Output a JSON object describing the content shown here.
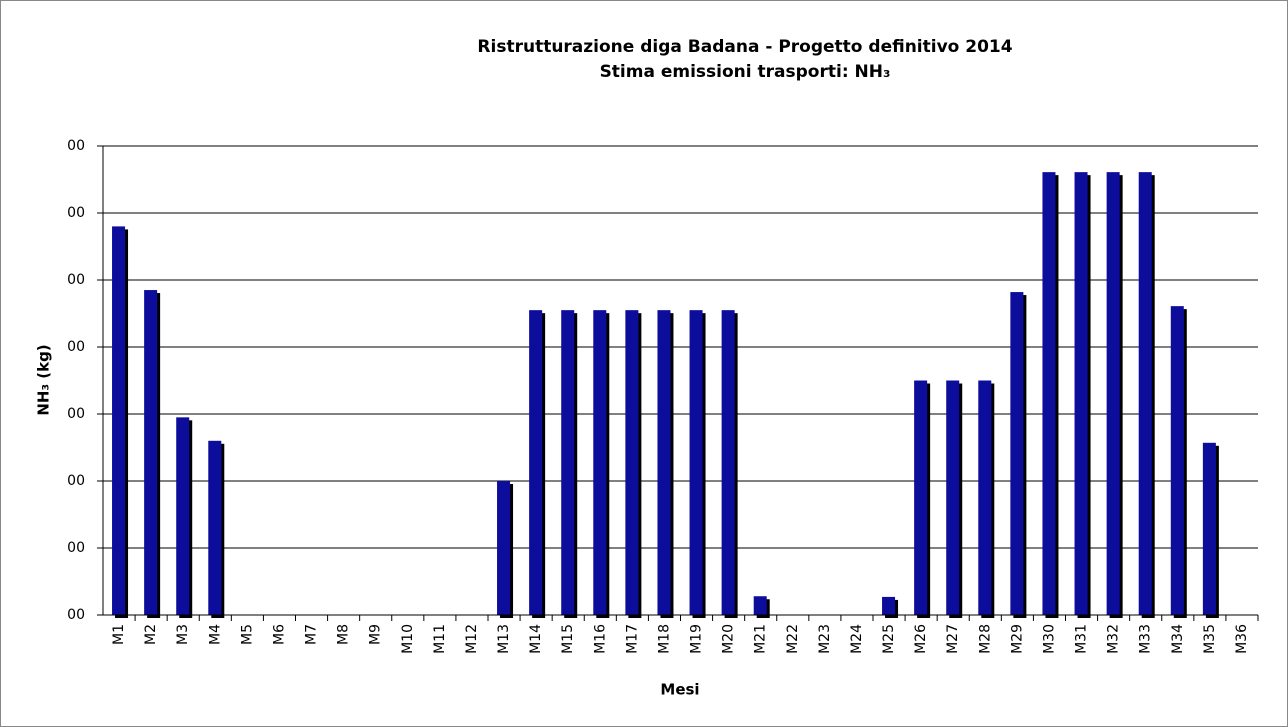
{
  "chart_data": {
    "type": "bar",
    "title": "Ristrutturazione diga Badana - Progetto definitivo 2014",
    "subtitle": "Stima emissioni trasporti: NH₃",
    "x_label": "Mesi",
    "y_label": "NH₃ (kg)",
    "categories": [
      "M1",
      "M2",
      "M3",
      "M4",
      "M5",
      "M6",
      "M7",
      "M8",
      "M9",
      "M10",
      "M11",
      "M12",
      "M13",
      "M14",
      "M15",
      "M16",
      "M17",
      "M18",
      "M19",
      "M20",
      "M21",
      "M22",
      "M23",
      "M24",
      "M25",
      "M26",
      "M27",
      "M28",
      "M29",
      "M30",
      "M31",
      "M32",
      "M33",
      "M34",
      "M35",
      "M36"
    ],
    "values": [
      5.8,
      4.85,
      2.95,
      2.6,
      0,
      0,
      0,
      0,
      0,
      0,
      0,
      0,
      2.0,
      4.55,
      4.55,
      4.55,
      4.55,
      4.55,
      4.55,
      4.55,
      0.28,
      0,
      0,
      0,
      0.27,
      3.5,
      3.5,
      3.5,
      4.82,
      6.61,
      6.61,
      6.61,
      6.61,
      4.61,
      2.57,
      0
    ],
    "color": "#0c0c9c",
    "ylim": [
      0,
      7
    ],
    "yticks": [
      {
        "value": 0,
        "label": "00"
      },
      {
        "value": 1,
        "label": "00"
      },
      {
        "value": 2,
        "label": "00"
      },
      {
        "value": 3,
        "label": "00"
      },
      {
        "value": 4,
        "label": "00"
      },
      {
        "value": 5,
        "label": "00"
      },
      {
        "value": 6,
        "label": "00"
      },
      {
        "value": 7,
        "label": "00"
      }
    ],
    "grid": true
  }
}
